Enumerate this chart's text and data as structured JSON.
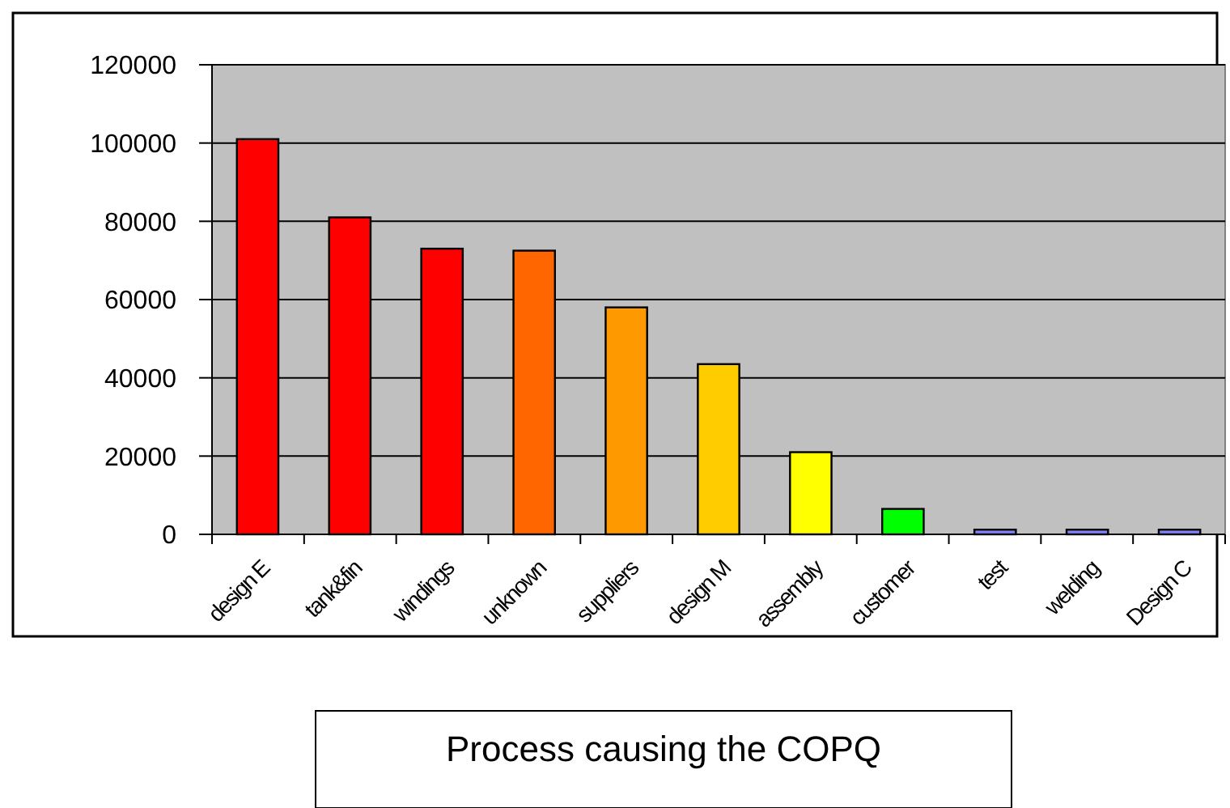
{
  "chart_data": {
    "type": "bar",
    "xlabel": "Process causing the COPQ",
    "categories": [
      "design E",
      "tank&fin",
      "windings",
      "unknown",
      "suppliers",
      "design M",
      "assembly",
      "customer",
      "test",
      "welding",
      "Design C"
    ],
    "values": [
      101000,
      81000,
      73000,
      72500,
      58000,
      43500,
      21000,
      6500,
      1200,
      1200,
      1200
    ],
    "colors": [
      "#ff0000",
      "#ff0000",
      "#ff0000",
      "#ff6600",
      "#ff9900",
      "#ffcc00",
      "#ffff00",
      "#00ff00",
      "#8080ff",
      "#8080ff",
      "#8080ff"
    ],
    "ylim": [
      0,
      120000
    ],
    "yticks": [
      0,
      20000,
      40000,
      60000,
      80000,
      100000,
      120000
    ],
    "grid": "y"
  }
}
